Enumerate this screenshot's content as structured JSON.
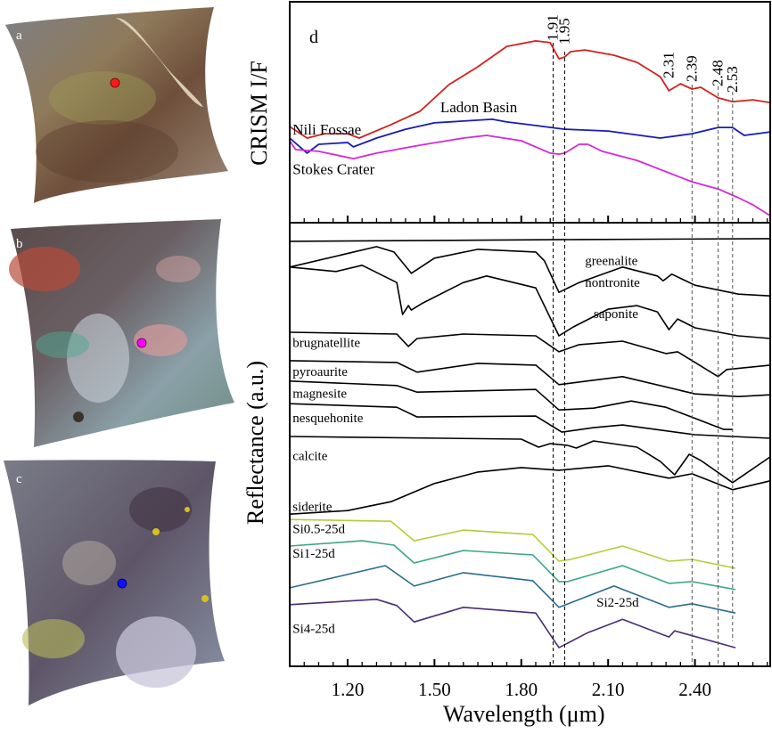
{
  "maps": [
    {
      "letter": "a",
      "site": "Nili Fossae",
      "marker_color": "#ff1a1a"
    },
    {
      "letter": "b",
      "site": "Stokes Crater",
      "marker_color": "#ff00ff"
    },
    {
      "letter": "c",
      "site": "Ladon Basin",
      "marker_color": "#1010ff"
    }
  ],
  "chart_data": {
    "type": "line",
    "panel_letter": "d",
    "xlabel": "Wavelength (μm)",
    "xlim": [
      1.0,
      2.66
    ],
    "xticks": [
      1.2,
      1.5,
      1.8,
      2.1,
      2.4
    ],
    "xtick_labels": [
      "1.20",
      "1.50",
      "1.80",
      "2.10",
      "2.40"
    ],
    "minor_tick_step": 0.05,
    "grid": false,
    "reference_lines": {
      "values": [
        1.91,
        1.95,
        2.31,
        2.39,
        2.48,
        2.53
      ],
      "labels": [
        "1.91",
        "1.95",
        "2.31",
        "2.39",
        "2.48",
        "2.53"
      ]
    },
    "panels": [
      {
        "name": "upper",
        "ylabel": "CRISM I/F",
        "ylim": [
          0,
          100
        ],
        "dashed_lines": [
          1.91,
          1.95,
          2.39,
          2.48,
          2.53
        ],
        "series": [
          {
            "name": "Nili Fossae",
            "color": "#d42020",
            "label_x": 1.01,
            "label_y": 40,
            "x": [
              1.0,
              1.06,
              1.12,
              1.2,
              1.24,
              1.35,
              1.45,
              1.55,
              1.65,
              1.75,
              1.85,
              1.9,
              1.93,
              1.95,
              1.97,
              2.02,
              2.12,
              2.2,
              2.28,
              2.31,
              2.35,
              2.39,
              2.42,
              2.48,
              2.53,
              2.6,
              2.66
            ],
            "y": [
              43.5,
              38.3,
              40.3,
              40.3,
              38.3,
              44.4,
              50.4,
              62.5,
              70.6,
              79.8,
              82.3,
              81.5,
              74.2,
              75.0,
              77.4,
              78.2,
              75.8,
              72.6,
              66.1,
              59.7,
              62.9,
              60.5,
              61.3,
              56.5,
              54.8,
              55.6,
              54.4
            ]
          },
          {
            "name": "Ladon Basin",
            "color": "#1a1ab8",
            "label_x": 1.52,
            "label_y": 50,
            "x": [
              1.0,
              1.06,
              1.1,
              1.2,
              1.22,
              1.3,
              1.4,
              1.5,
              1.6,
              1.7,
              1.75,
              1.85,
              1.95,
              2.1,
              2.28,
              2.39,
              2.48,
              2.53,
              2.57,
              2.66
            ],
            "y": [
              38.3,
              31.5,
              35.5,
              36.3,
              34.3,
              38.3,
              42.3,
              45.2,
              46.0,
              46.8,
              45.6,
              44.0,
              42.3,
              41.5,
              38.3,
              40.3,
              43.1,
              43.1,
              39.5,
              41.1
            ]
          },
          {
            "name": "Stokes Crater",
            "color": "#d42ad4",
            "label_x": 1.01,
            "label_y": 22,
            "x": [
              1.0,
              1.02,
              1.1,
              1.22,
              1.3,
              1.45,
              1.6,
              1.68,
              1.8,
              1.9,
              1.93,
              1.95,
              2.0,
              2.03,
              2.08,
              2.2,
              2.39,
              2.48,
              2.55,
              2.6,
              2.66
            ],
            "y": [
              37.1,
              33.1,
              32.3,
              29.0,
              31.5,
              35.1,
              38.3,
              39.5,
              37.1,
              31.5,
              31.0,
              31.5,
              35.5,
              35.5,
              32.3,
              28.2,
              18.5,
              15.3,
              11.3,
              8.1,
              3.2
            ]
          }
        ]
      },
      {
        "name": "lower",
        "ylabel": "Reflectance (a.u.)",
        "ylim": [
          0,
          100
        ],
        "dashed_lines": [
          1.91,
          1.95,
          2.39,
          2.48,
          2.53
        ],
        "series": [
          {
            "name": "greenalite",
            "color": "#000000",
            "label_x": 2.02,
            "label_y": 90.5,
            "x": [
              1.0,
              1.5,
              2.0,
              2.66
            ],
            "y": [
              95.8,
              96.0,
              96.2,
              96.4
            ]
          },
          {
            "name": "nontronite",
            "color": "#000000",
            "label_x": 2.02,
            "label_y": 85.5,
            "x": [
              1.0,
              1.3,
              1.36,
              1.42,
              1.5,
              1.65,
              1.85,
              1.88,
              1.93,
              2.0,
              2.15,
              2.27,
              2.29,
              2.32,
              2.4,
              2.55,
              2.66
            ],
            "y": [
              90.0,
              94.6,
              93.4,
              88.6,
              92.0,
              94.0,
              93.4,
              91.4,
              84.3,
              86.5,
              90.0,
              88.0,
              86.9,
              88.4,
              85.9,
              83.9,
              83.5
            ]
          },
          {
            "name": "saponite",
            "color": "#000000",
            "label_x": 2.05,
            "label_y": 78.5,
            "x": [
              1.0,
              1.16,
              1.25,
              1.37,
              1.39,
              1.41,
              1.42,
              1.46,
              1.6,
              1.68,
              1.85,
              1.93,
              1.98,
              2.1,
              2.2,
              2.27,
              2.31,
              2.34,
              2.4,
              2.55,
              2.66
            ],
            "y": [
              90.0,
              89.0,
              90.4,
              86.5,
              79.3,
              81.3,
              80.3,
              81.9,
              86.5,
              88.0,
              85.3,
              74.5,
              76.5,
              80.5,
              81.3,
              79.9,
              75.9,
              78.3,
              76.3,
              74.5,
              73.9
            ]
          },
          {
            "name": "brugnatellite",
            "color": "#000000",
            "label_x": 1.01,
            "label_y": 72.0,
            "x": [
              1.0,
              1.37,
              1.41,
              1.44,
              1.6,
              1.85,
              1.93,
              2.0,
              2.15,
              2.3,
              2.34,
              2.48,
              2.51,
              2.66
            ],
            "y": [
              75.3,
              74.9,
              72.1,
              73.9,
              74.9,
              74.5,
              70.9,
              72.5,
              73.3,
              70.5,
              70.9,
              65.3,
              66.9,
              67.9
            ]
          },
          {
            "name": "pyroaurite",
            "color": "#000000",
            "label_x": 1.01,
            "label_y": 65.5,
            "x": [
              1.0,
              1.37,
              1.44,
              1.65,
              1.85,
              1.93,
              2.05,
              2.15,
              2.4,
              2.55,
              2.66
            ],
            "y": [
              68.9,
              68.5,
              66.3,
              68.3,
              67.9,
              63.5,
              64.5,
              65.3,
              61.4,
              60.8,
              61.2
            ]
          },
          {
            "name": "magnesite",
            "color": "#000000",
            "label_x": 1.01,
            "label_y": 60.5,
            "x": [
              1.0,
              1.37,
              1.44,
              1.85,
              1.93,
              2.05,
              2.18,
              2.3,
              2.5,
              2.53
            ],
            "y": [
              64.3,
              63.3,
              61.8,
              62.4,
              57.8,
              58.2,
              59.8,
              58.4,
              53.4,
              53.4
            ]
          },
          {
            "name": "nesquehonite",
            "color": "#000000",
            "label_x": 1.01,
            "label_y": 55.0,
            "x": [
              1.0,
              1.37,
              1.44,
              1.85,
              1.94,
              2.05,
              2.15,
              2.4,
              2.66
            ],
            "y": [
              59.2,
              58.4,
              56.2,
              56.4,
              52.8,
              53.8,
              54.4,
              52.2,
              51.4
            ]
          },
          {
            "name": "calcite",
            "color": "#000000",
            "label_x": 1.01,
            "label_y": 46.5,
            "x": [
              1.0,
              1.8,
              1.86,
              1.9,
              1.96,
              1.99,
              2.05,
              2.2,
              2.28,
              2.33,
              2.38,
              2.42,
              2.53,
              2.66
            ],
            "y": [
              51.8,
              51.2,
              49.4,
              50.2,
              49.8,
              49.2,
              50.8,
              49.4,
              46.2,
              43.2,
              47.8,
              46.4,
              41.4,
              47.2
            ]
          },
          {
            "name": "siderite",
            "color": "#000000",
            "label_x": 1.01,
            "label_y": 35.0,
            "x": [
              1.0,
              1.2,
              1.35,
              1.5,
              1.65,
              1.8,
              1.93,
              2.1,
              2.31,
              2.39,
              2.53,
              2.66
            ],
            "y": [
              34.3,
              35.1,
              37.1,
              41.2,
              43.8,
              44.8,
              44.2,
              45.2,
              42.4,
              43.4,
              39.8,
              41.8
            ]
          },
          {
            "name": "Si0.5-25d",
            "color": "#b3cd3a",
            "label_x": 1.01,
            "label_y": 30.0,
            "x": [
              1.0,
              1.35,
              1.43,
              1.6,
              1.84,
              1.93,
              1.97,
              2.15,
              2.31,
              2.39,
              2.54
            ],
            "y": [
              33.1,
              32.7,
              28.3,
              30.7,
              29.7,
              23.7,
              24.1,
              27.1,
              23.7,
              24.1,
              22.1
            ]
          },
          {
            "name": "Si1-25d",
            "color": "#3ba58a",
            "label_x": 1.01,
            "label_y": 24.5,
            "x": [
              1.0,
              1.25,
              1.36,
              1.43,
              1.6,
              1.84,
              1.93,
              1.96,
              2.15,
              2.31,
              2.39,
              2.54
            ],
            "y": [
              27.1,
              28.3,
              27.3,
              23.3,
              26.1,
              25.1,
              19.1,
              19.1,
              22.7,
              18.7,
              19.1,
              17.3
            ]
          },
          {
            "name": "Si2-25d",
            "color": "#2e6b8c",
            "label_x": 2.06,
            "label_y": 13.5,
            "x": [
              1.0,
              1.33,
              1.43,
              1.6,
              1.84,
              1.93,
              1.97,
              2.12,
              2.31,
              2.39,
              2.54
            ],
            "y": [
              17.7,
              22.7,
              18.1,
              21.1,
              19.3,
              13.3,
              14.3,
              18.1,
              13.3,
              14.1,
              12.0
            ]
          },
          {
            "name": "Si4-25d",
            "color": "#4a2c78",
            "label_x": 1.01,
            "label_y": 7.5,
            "x": [
              1.0,
              1.3,
              1.37,
              1.43,
              1.6,
              1.85,
              1.93,
              2.03,
              2.15,
              2.31,
              2.33,
              2.54
            ],
            "y": [
              13.9,
              15.1,
              13.7,
              10.0,
              13.3,
              12.0,
              4.2,
              7.6,
              10.6,
              6.6,
              8.0,
              4.2
            ]
          }
        ]
      }
    ]
  }
}
